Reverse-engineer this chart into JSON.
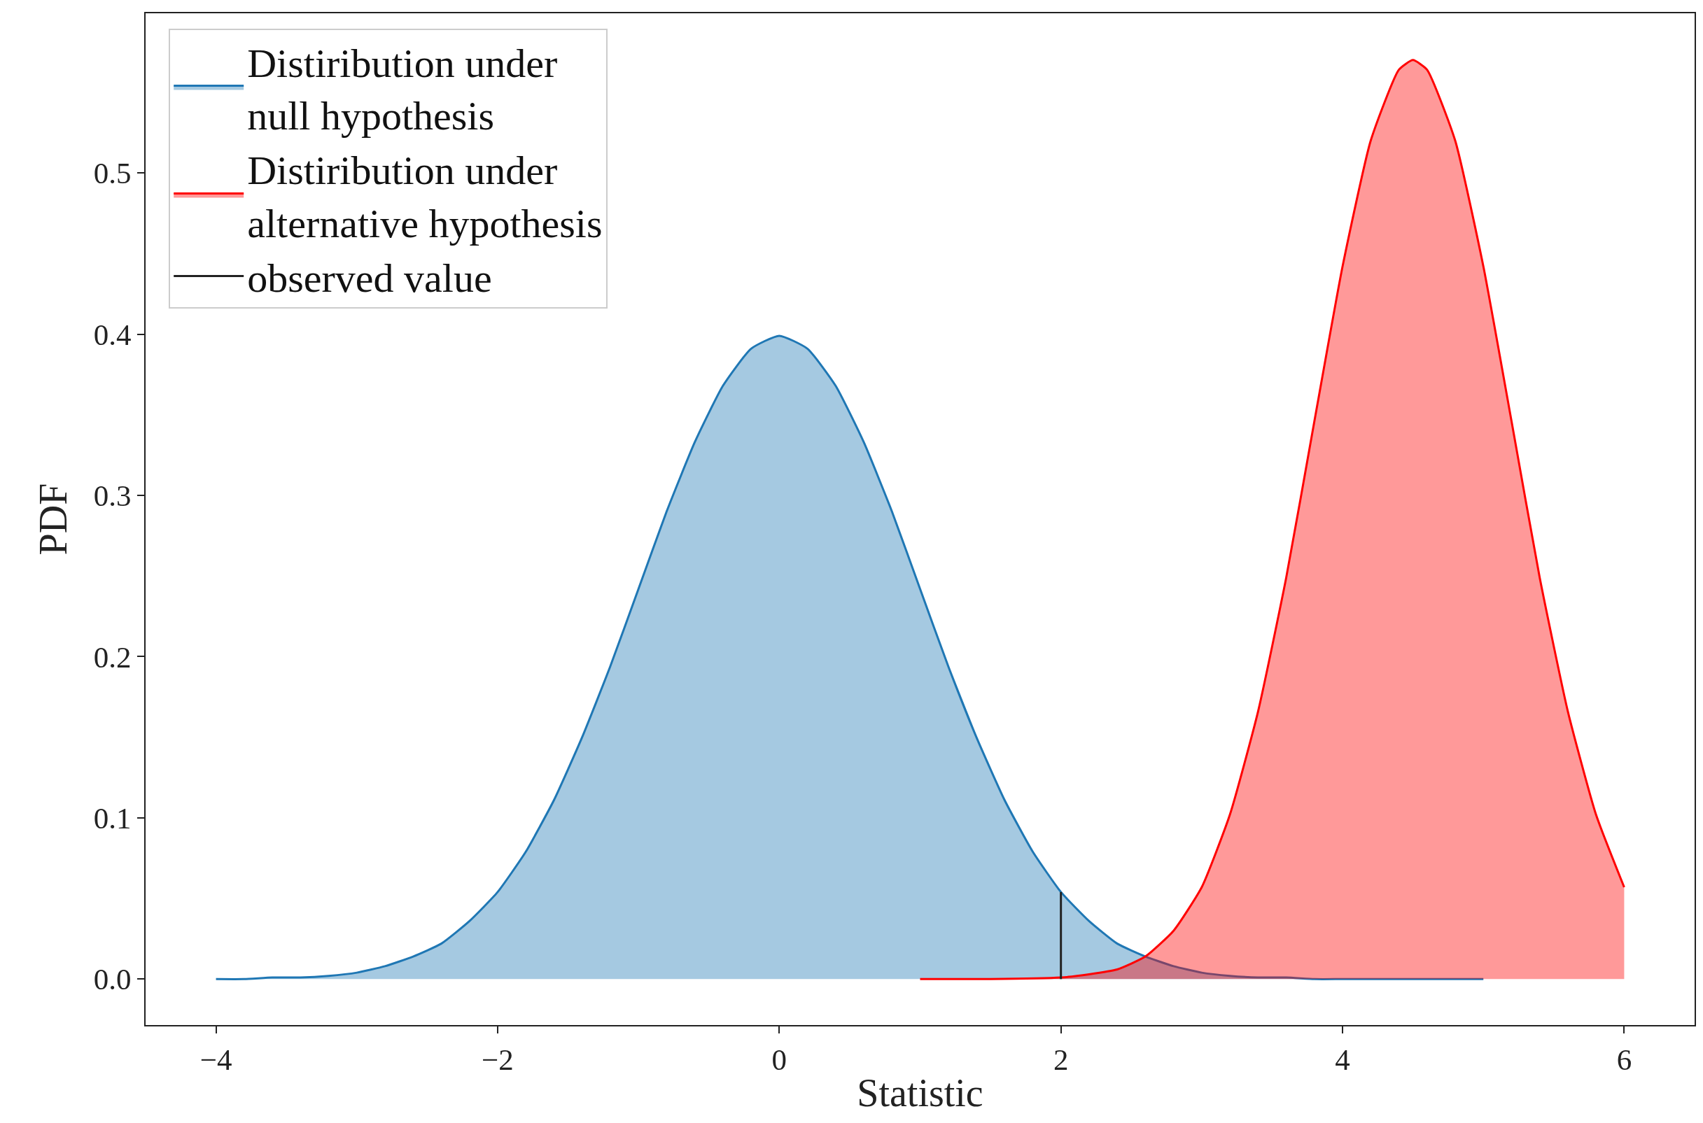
{
  "chart_data": {
    "type": "area",
    "xlabel": "Statistic",
    "ylabel": "PDF",
    "xlim": [
      -4.5,
      6.5
    ],
    "xticks": [
      {
        "value": -4,
        "label": "−4"
      },
      {
        "value": -2,
        "label": "−2"
      },
      0,
      2,
      4,
      6
    ],
    "ylim": [
      -0.0285,
      0.599
    ],
    "yticks": [
      {
        "value": 0,
        "label": "0.0"
      },
      0.1,
      0.2,
      0.3,
      0.4,
      0.5
    ],
    "legend": "top left",
    "series": [
      {
        "name": "Distiribution under\nnull hypothesis",
        "color": "#1f77b4",
        "x": [
          -4,
          -3.8,
          -3.6,
          -3.4,
          -3.2,
          -3.0,
          -2.8,
          -2.6,
          -2.4,
          -2.2,
          -2.0,
          -1.8,
          -1.6,
          -1.4,
          -1.2,
          -1.0,
          -0.8,
          -0.6,
          -0.4,
          -0.2,
          0,
          0.2,
          0.4,
          0.6,
          0.8,
          1.0,
          1.2,
          1.4,
          1.6,
          1.8,
          2.0,
          2.2,
          2.4,
          2.6,
          2.8,
          3.0,
          3.2,
          3.4,
          3.6,
          3.8,
          4.0,
          4.4,
          5.0
        ],
        "values": [
          0.0,
          0.0,
          0.001,
          0.001,
          0.002,
          0.004,
          0.008,
          0.014,
          0.022,
          0.036,
          0.054,
          0.079,
          0.111,
          0.15,
          0.194,
          0.242,
          0.29,
          0.333,
          0.368,
          0.391,
          0.399,
          0.391,
          0.368,
          0.333,
          0.29,
          0.242,
          0.194,
          0.15,
          0.111,
          0.079,
          0.054,
          0.036,
          0.022,
          0.014,
          0.008,
          0.004,
          0.002,
          0.001,
          0.001,
          0.0,
          0.0,
          0.0,
          0.0
        ]
      },
      {
        "name": "Distiribution under\nalternative hypothesis",
        "color": "#ff0000",
        "x": [
          1.0,
          1.5,
          2.0,
          2.2,
          2.4,
          2.6,
          2.8,
          3.0,
          3.2,
          3.4,
          3.6,
          3.8,
          4.0,
          4.2,
          4.4,
          4.5,
          4.6,
          4.8,
          5.0,
          5.2,
          5.4,
          5.6,
          5.8,
          6.0
        ],
        "values": [
          0.0,
          0.0,
          0.001,
          0.003,
          0.006,
          0.014,
          0.03,
          0.057,
          0.102,
          0.166,
          0.249,
          0.346,
          0.442,
          0.52,
          0.564,
          0.57,
          0.564,
          0.52,
          0.442,
          0.346,
          0.249,
          0.166,
          0.102,
          0.057
        ]
      },
      {
        "name": "observed value",
        "color": "#222222",
        "type": "line",
        "x": [
          2,
          2
        ],
        "values": [
          0.0,
          0.054
        ]
      }
    ]
  }
}
